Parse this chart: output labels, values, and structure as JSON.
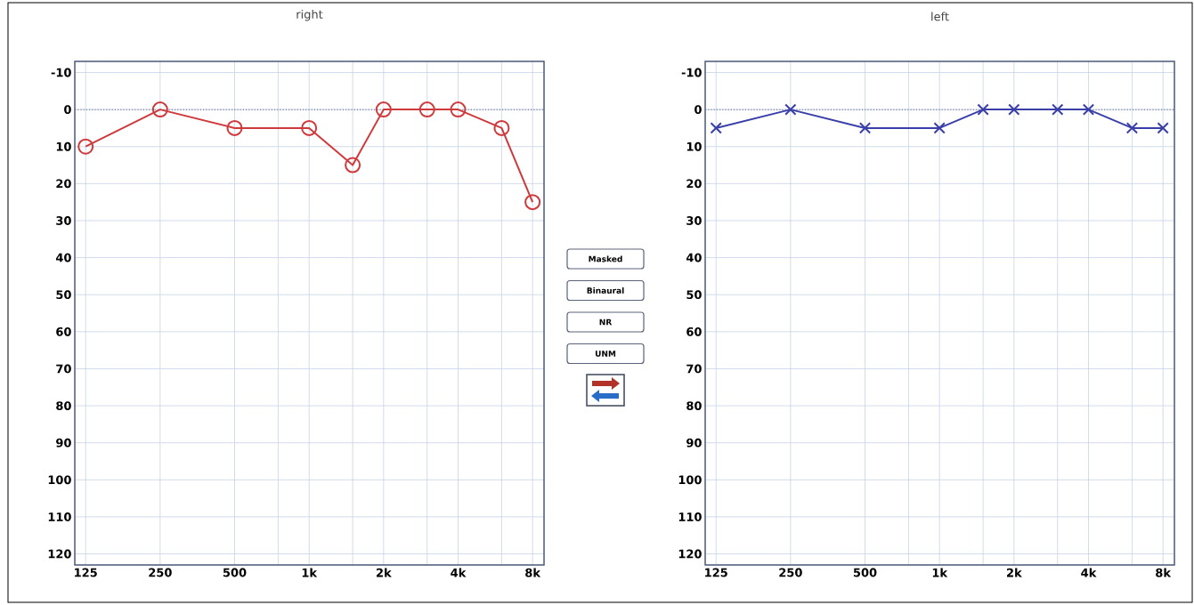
{
  "chart_data": [
    {
      "type": "line",
      "title": "right",
      "x": [
        125,
        250,
        500,
        1000,
        1500,
        2000,
        3000,
        4000,
        6000,
        8000
      ],
      "values": [
        10,
        0,
        5,
        5,
        15,
        0,
        0,
        0,
        5,
        25
      ],
      "color": "#d0393b",
      "marker": "circle",
      "log": "x",
      "xlim": [
        113,
        8900
      ],
      "ylim": [
        123,
        -13
      ],
      "xticks": [
        125,
        250,
        500,
        {
          "value": 1000,
          "label": "1k"
        },
        {
          "value": 2000,
          "label": "2k"
        },
        {
          "value": 4000,
          "label": "4k"
        },
        {
          "value": 8000,
          "label": "8k"
        },
        {
          "value": 750,
          "label": null
        },
        {
          "value": 1500,
          "label": null
        },
        {
          "value": 3000,
          "label": null
        },
        {
          "value": 6000,
          "label": null
        }
      ],
      "yticks": [
        -10,
        0,
        10,
        20,
        30,
        40,
        50,
        60,
        70,
        80,
        90,
        100,
        110,
        120
      ],
      "grid": true,
      "ref_lines": [
        {
          "axis": "y",
          "value": 0,
          "line_style": "dotted",
          "color": "#5a6a88"
        }
      ]
    },
    {
      "type": "other",
      "annotations": [
        "Masked",
        "Binaural",
        "NR",
        "UNM"
      ]
    },
    {
      "type": "line",
      "title": "left",
      "x": [
        125,
        250,
        500,
        1000,
        1500,
        2000,
        3000,
        4000,
        6000,
        8000
      ],
      "values": [
        5,
        0,
        5,
        5,
        0,
        0,
        0,
        0,
        5,
        5
      ],
      "color": "#3a3fa8",
      "marker": "cross",
      "log": "x",
      "xlim": [
        113,
        8900
      ],
      "ylim": [
        123,
        -13
      ],
      "xticks": [
        125,
        250,
        500,
        {
          "value": 1000,
          "label": "1k"
        },
        {
          "value": 2000,
          "label": "2k"
        },
        {
          "value": 4000,
          "label": "4k"
        },
        {
          "value": 8000,
          "label": "8k"
        },
        {
          "value": 750,
          "label": null
        },
        {
          "value": 1500,
          "label": null
        },
        {
          "value": 3000,
          "label": null
        },
        {
          "value": 6000,
          "label": null
        }
      ],
      "yticks": [
        -10,
        0,
        10,
        20,
        30,
        40,
        50,
        60,
        70,
        80,
        90,
        100,
        110,
        120
      ],
      "grid": true,
      "ref_lines": [
        {
          "axis": "y",
          "value": 0,
          "line_style": "dotted",
          "color": "#5a6a88"
        }
      ]
    }
  ]
}
